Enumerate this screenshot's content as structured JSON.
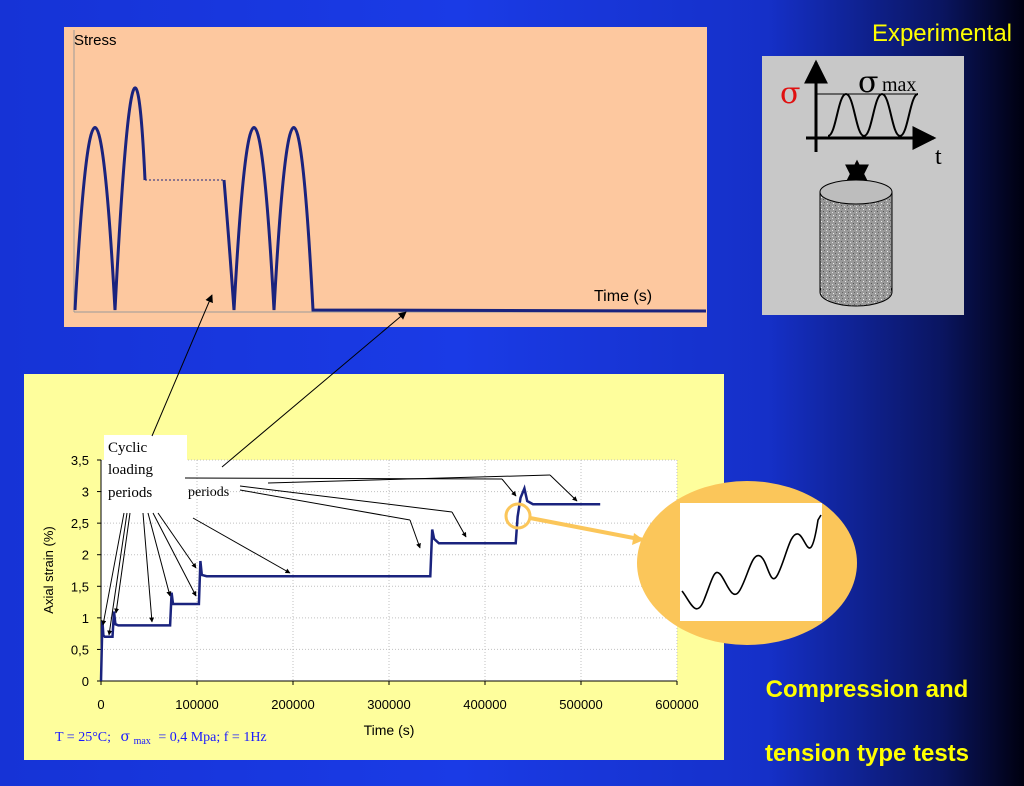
{
  "stress_chart": {
    "ylabel": "Stress",
    "xlabel": "Time (s)"
  },
  "experimental": {
    "title": "Experimental",
    "sigma": "σ",
    "sigma_max_symbol": "σ",
    "sigma_max_sub": "max",
    "t_label": "t"
  },
  "callout": {
    "cyclic": "Cyclic",
    "loading": "loading",
    "periods": "periods",
    "periods2": "periods"
  },
  "conditions": {
    "t_text": "T = 25°C;",
    "sigma": "σ",
    "sub": "max",
    "rest": "= 0,4 Mpa;  f = 1Hz"
  },
  "bottom_label": {
    "line1": "Compression and",
    "line2": "tension type tests"
  },
  "chart_data": {
    "type": "line",
    "xlabel": "Time (s)",
    "ylabel": "Axial strain (%)",
    "xlim": [
      0,
      600000
    ],
    "ylim": [
      0,
      3.5
    ],
    "x_ticks": [
      "0",
      "100000",
      "200000",
      "300000",
      "400000",
      "500000",
      "600000"
    ],
    "y_ticks": [
      "0",
      "0,5",
      "1",
      "1,5",
      "2",
      "2,5",
      "3",
      "3,5"
    ],
    "grid": true,
    "series": [
      {
        "x": [
          0,
          1500,
          2500,
          4000,
          12000,
          13500,
          15000,
          18000,
          72000,
          73500,
          75000,
          78000,
          102000,
          103500,
          105000,
          110000,
          343000,
          345000,
          347000,
          352000,
          432000,
          434000,
          437000,
          441000,
          444000,
          450000,
          520000
        ],
        "y": [
          0,
          0.95,
          0.72,
          0.7,
          0.7,
          1.1,
          0.9,
          0.88,
          0.88,
          1.4,
          1.22,
          1.22,
          1.22,
          1.9,
          1.68,
          1.66,
          1.66,
          2.4,
          2.25,
          2.18,
          2.18,
          2.6,
          2.9,
          3.05,
          2.85,
          2.8,
          2.8
        ],
        "color": "#1a237e"
      }
    ]
  }
}
